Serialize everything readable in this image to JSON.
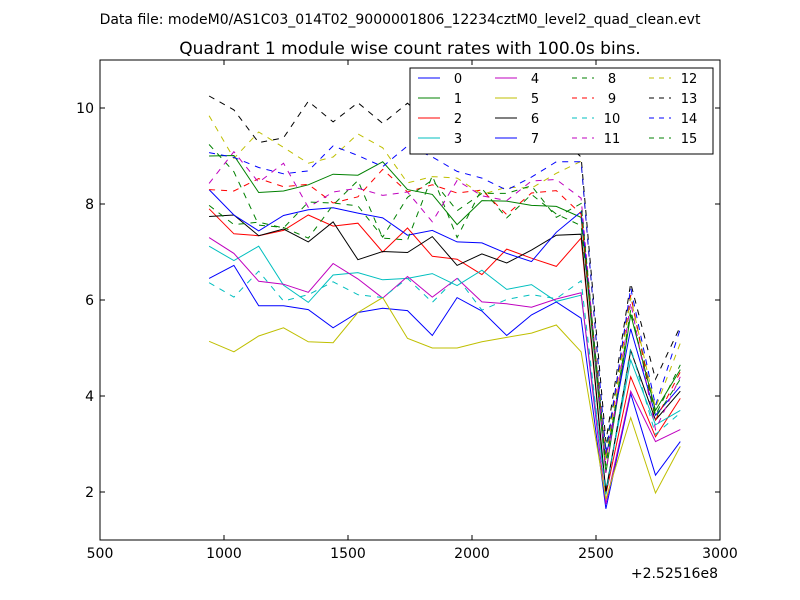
{
  "chart_data": {
    "type": "line",
    "suptitle": "Data file: modeM0/AS1C03_014T02_9000001806_12234cztM0_level2_quad_clean.evt",
    "title": "Quadrant 1 module wise count rates with 100.0s bins.",
    "xlabel": "",
    "ylabel": "",
    "offset_label": "+2.52516e8",
    "xlim": [
      500,
      3000
    ],
    "ylim": [
      1,
      11
    ],
    "xticks": [
      500,
      1000,
      1500,
      2000,
      2500,
      3000
    ],
    "xtick_labels": [
      "500",
      "1000",
      "1500",
      "2000",
      "2500",
      "3000"
    ],
    "yticks": [
      2,
      4,
      6,
      8,
      10
    ],
    "ytick_labels": [
      "2",
      "4",
      "6",
      "8",
      "10"
    ],
    "legend": {
      "position": "top-right",
      "columns": 4
    },
    "x": [
      940,
      1040,
      1140,
      1240,
      1340,
      1440,
      1540,
      1640,
      1740,
      1840,
      1940,
      2040,
      2140,
      2240,
      2340,
      2440,
      2540,
      2640,
      2740,
      2840
    ],
    "series": [
      {
        "name": "0",
        "color": "#0000ff",
        "dash": "solid",
        "values": [
          6.45,
          6.72,
          5.88,
          5.88,
          5.8,
          5.42,
          5.74,
          5.83,
          5.78,
          5.26,
          6.05,
          5.77,
          5.26,
          5.69,
          5.96,
          5.62,
          1.65,
          4.05,
          2.35,
          3.05
        ]
      },
      {
        "name": "1",
        "color": "#008000",
        "dash": "solid",
        "values": [
          9.0,
          9.01,
          8.24,
          8.27,
          8.4,
          8.62,
          8.6,
          8.88,
          8.3,
          8.2,
          7.57,
          8.07,
          8.06,
          7.97,
          7.95,
          7.72,
          2.4,
          5.7,
          3.7,
          4.55
        ]
      },
      {
        "name": "2",
        "color": "#ff0000",
        "dash": "solid",
        "values": [
          7.9,
          7.38,
          7.34,
          7.45,
          7.77,
          7.54,
          7.6,
          7.0,
          7.5,
          6.91,
          6.85,
          6.53,
          7.06,
          6.87,
          6.7,
          7.29,
          1.95,
          4.4,
          3.15,
          3.95
        ]
      },
      {
        "name": "3",
        "color": "#00bfbf",
        "dash": "solid",
        "values": [
          7.12,
          6.82,
          7.12,
          6.31,
          5.95,
          6.52,
          6.57,
          6.42,
          6.45,
          6.55,
          6.3,
          6.62,
          6.22,
          6.32,
          5.97,
          6.1,
          2.05,
          4.75,
          3.4,
          3.7
        ]
      },
      {
        "name": "4",
        "color": "#bf00bf",
        "dash": "solid",
        "values": [
          7.3,
          6.97,
          6.39,
          6.33,
          6.16,
          6.76,
          6.44,
          6.04,
          6.49,
          6.06,
          6.45,
          5.96,
          5.92,
          5.85,
          6.02,
          6.15,
          1.75,
          4.1,
          3.05,
          3.3
        ]
      },
      {
        "name": "5",
        "color": "#bfbf00",
        "dash": "solid",
        "values": [
          5.14,
          4.92,
          5.25,
          5.42,
          5.13,
          5.11,
          5.74,
          6.05,
          5.2,
          5.0,
          5.0,
          5.13,
          5.22,
          5.31,
          5.48,
          4.92,
          1.85,
          3.55,
          1.98,
          2.95
        ]
      },
      {
        "name": "6",
        "color": "#000000",
        "dash": "solid",
        "values": [
          7.74,
          7.77,
          7.34,
          7.48,
          7.21,
          7.63,
          6.84,
          7.01,
          6.99,
          7.32,
          6.72,
          6.96,
          6.77,
          7.04,
          7.35,
          7.37,
          2.0,
          4.95,
          3.5,
          4.1
        ]
      },
      {
        "name": "7",
        "color": "#0000ff",
        "dash": "solid",
        "values": [
          8.3,
          7.77,
          7.44,
          7.76,
          7.88,
          7.92,
          7.81,
          7.71,
          7.35,
          7.45,
          7.21,
          7.19,
          6.97,
          6.8,
          7.41,
          7.84,
          2.7,
          5.4,
          3.6,
          4.2
        ]
      },
      {
        "name": "8",
        "color": "#008000",
        "dash": "dashed",
        "values": [
          9.24,
          8.67,
          7.56,
          7.51,
          7.29,
          7.98,
          8.49,
          7.29,
          7.25,
          8.59,
          7.3,
          8.32,
          7.71,
          8.2,
          7.79,
          7.55,
          2.9,
          6.1,
          3.6,
          4.65
        ]
      },
      {
        "name": "9",
        "color": "#ff0000",
        "dash": "dashed",
        "values": [
          8.3,
          8.27,
          8.53,
          8.36,
          8.41,
          8.02,
          8.15,
          8.72,
          8.25,
          8.4,
          8.23,
          8.29,
          7.78,
          8.23,
          8.28,
          7.79,
          2.7,
          6.1,
          3.5,
          4.5
        ]
      },
      {
        "name": "10",
        "color": "#00bfbf",
        "dash": "dashed",
        "values": [
          6.36,
          6.06,
          6.6,
          5.98,
          6.11,
          6.38,
          6.11,
          6.05,
          6.45,
          5.95,
          6.47,
          5.79,
          6.01,
          6.11,
          6.03,
          6.4,
          1.95,
          5.0,
          3.2,
          3.65
        ]
      },
      {
        "name": "11",
        "color": "#bf00bf",
        "dash": "dashed",
        "values": [
          8.43,
          9.09,
          8.45,
          8.85,
          7.93,
          8.25,
          8.33,
          8.18,
          8.25,
          7.63,
          8.49,
          8.17,
          8.07,
          8.48,
          8.51,
          8.12,
          2.4,
          5.95,
          3.3,
          4.4
        ]
      },
      {
        "name": "12",
        "color": "#bfbf00",
        "dash": "dashed",
        "values": [
          9.84,
          8.95,
          9.5,
          9.18,
          8.85,
          8.98,
          9.46,
          9.17,
          8.44,
          8.57,
          8.54,
          8.2,
          8.35,
          8.33,
          8.64,
          8.89,
          2.65,
          6.05,
          3.75,
          5.1
        ]
      },
      {
        "name": "13",
        "color": "#000000",
        "dash": "dashed",
        "values": [
          10.25,
          9.96,
          9.28,
          9.38,
          10.14,
          9.71,
          10.11,
          9.68,
          10.1,
          9.64,
          9.81,
          9.76,
          9.18,
          9.17,
          9.45,
          8.98,
          3.05,
          6.35,
          4.35,
          5.45
        ]
      },
      {
        "name": "14",
        "color": "#0000ff",
        "dash": "dashed",
        "values": [
          9.07,
          8.97,
          8.76,
          8.63,
          8.69,
          9.21,
          9.01,
          8.78,
          9.21,
          8.98,
          8.68,
          8.54,
          8.29,
          8.56,
          8.88,
          8.88,
          2.8,
          6.25,
          3.8,
          5.4
        ]
      },
      {
        "name": "15",
        "color": "#008000",
        "dash": "dashed",
        "values": [
          7.97,
          7.57,
          7.62,
          7.5,
          8.04,
          8.02,
          7.96,
          7.31,
          8.14,
          8.5,
          7.86,
          8.22,
          8.22,
          8.38,
          7.72,
          8.01,
          2.55,
          5.8,
          3.55,
          4.35
        ]
      }
    ]
  }
}
